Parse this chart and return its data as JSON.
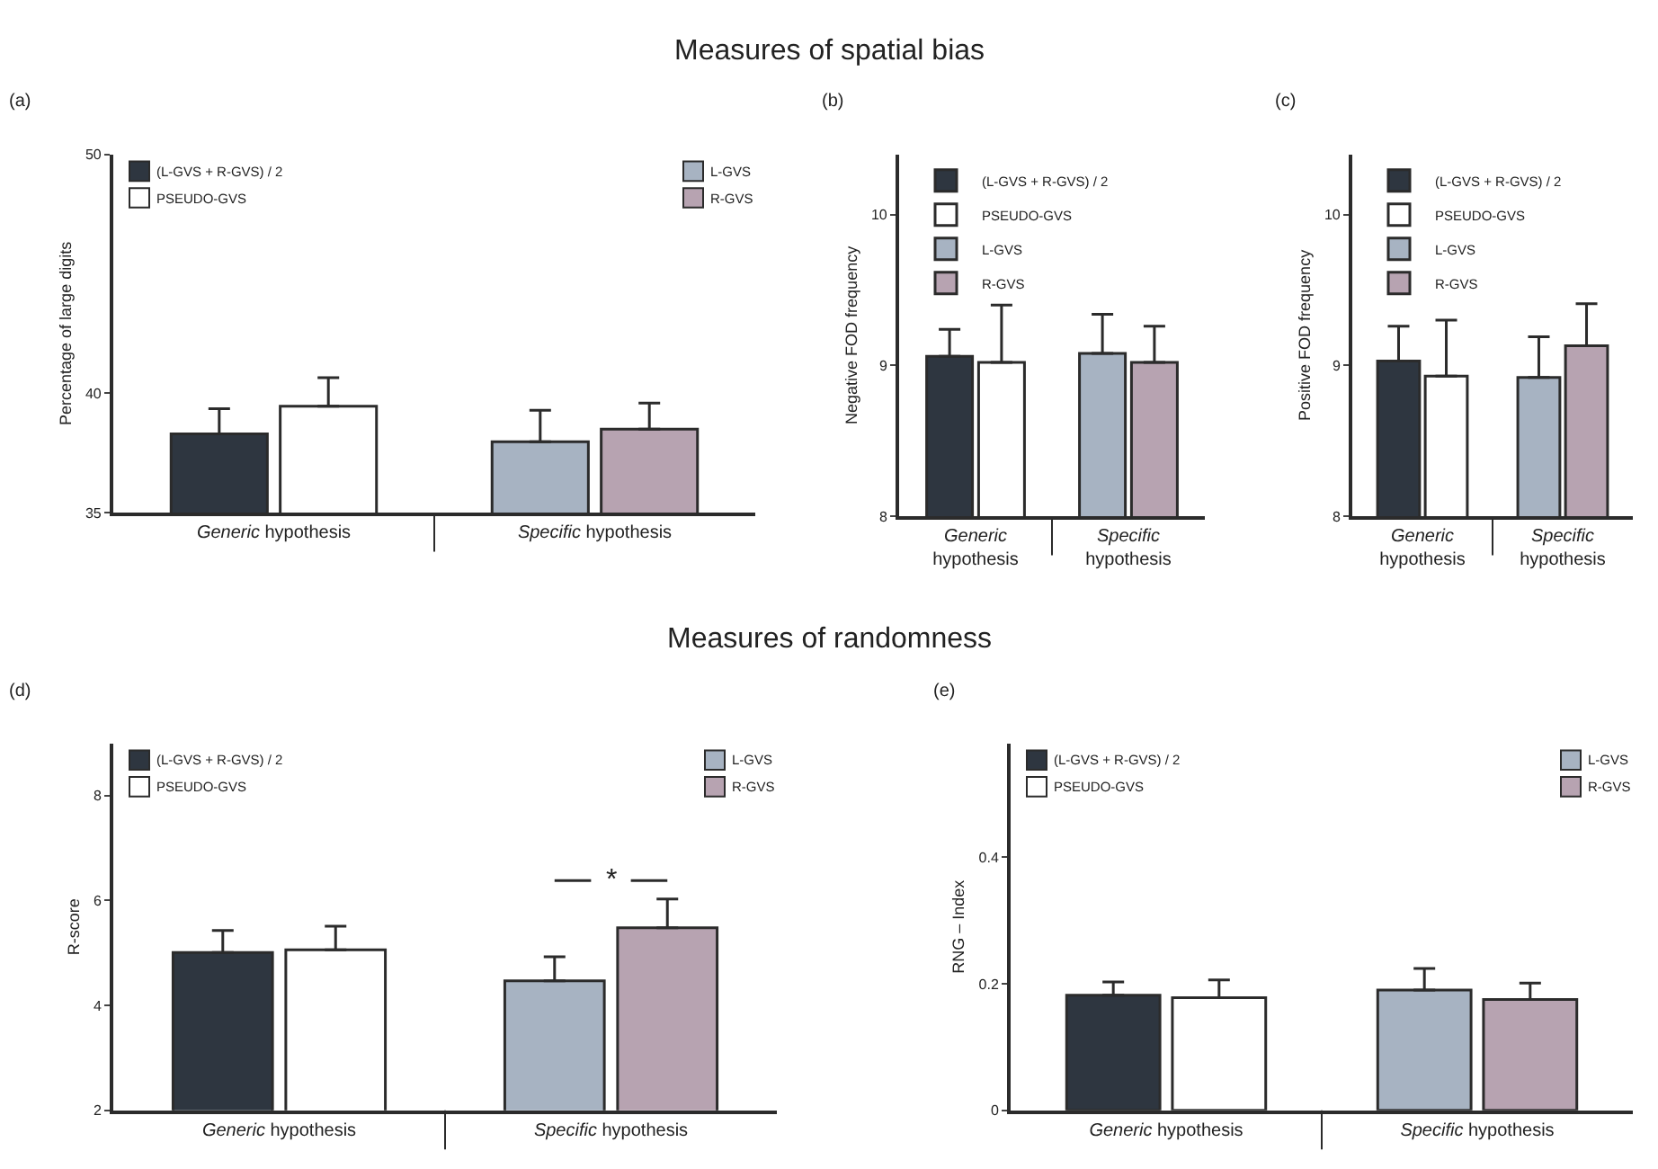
{
  "chart_data": [
    {
      "type": "bar",
      "title": "(a)",
      "ylabel": "Percentage of large digits",
      "annotations": [
        "Measures of spatial bias"
      ],
      "categories": [
        "Generic hypothesis",
        "Specific hypothesis"
      ],
      "ylim": [
        35,
        50
      ],
      "yticks": [
        35,
        40,
        50
      ],
      "legend": "top",
      "grid": false,
      "series": [
        {
          "name": "(L-GVS + R-GVS) / 2",
          "color": "#2e3640",
          "values": [
            38.3,
            null
          ],
          "errors": [
            [
              38.3,
              39.35
            ],
            null
          ]
        },
        {
          "name": "PSEUDO-GVS",
          "color": "#ffffff",
          "values": [
            39.46,
            null
          ],
          "errors": [
            [
              39.46,
              40.65
            ],
            null
          ]
        },
        {
          "name": "L-GVS",
          "color": "#a7b3c2",
          "values": [
            null,
            37.97
          ],
          "errors": [
            null,
            [
              37.97,
              39.29
            ]
          ]
        },
        {
          "name": "R-GVS",
          "color": "#b7a3b1",
          "values": [
            null,
            38.5
          ],
          "errors": [
            null,
            [
              38.5,
              39.59
            ]
          ]
        }
      ]
    },
    {
      "type": "bar",
      "title": "(b)",
      "ylabel": "Negative FOD frequency",
      "categories": [
        "Generic hypothesis",
        "Specific hypothesis"
      ],
      "ylim": [
        8,
        10.4
      ],
      "yticks": [
        8,
        9,
        10
      ],
      "legend": "top",
      "grid": false,
      "series": [
        {
          "name": "(L-GVS + R-GVS) / 2",
          "color": "#2e3640",
          "values": [
            9.06,
            null
          ],
          "errors": [
            [
              9.06,
              9.24
            ],
            null
          ]
        },
        {
          "name": "PSEUDO-GVS",
          "color": "#ffffff",
          "values": [
            9.02,
            null
          ],
          "errors": [
            [
              9.02,
              9.4
            ],
            null
          ]
        },
        {
          "name": "L-GVS",
          "color": "#a7b3c2",
          "values": [
            null,
            9.08
          ],
          "errors": [
            null,
            [
              9.08,
              9.34
            ]
          ]
        },
        {
          "name": "R-GVS",
          "color": "#b7a3b1",
          "values": [
            null,
            9.02
          ],
          "errors": [
            null,
            [
              9.02,
              9.26
            ]
          ]
        }
      ]
    },
    {
      "type": "bar",
      "title": "(c)",
      "ylabel": "Positive FOD frequency",
      "categories": [
        "Generic hypothesis",
        "Specific hypothesis"
      ],
      "ylim": [
        8,
        10.4
      ],
      "yticks": [
        8,
        9,
        10
      ],
      "legend": "top",
      "grid": false,
      "series": [
        {
          "name": "(L-GVS + R-GVS) / 2",
          "color": "#2e3640",
          "values": [
            9.03,
            null
          ],
          "errors": [
            [
              9.03,
              9.26
            ],
            null
          ]
        },
        {
          "name": "PSEUDO-GVS",
          "color": "#ffffff",
          "values": [
            8.93,
            null
          ],
          "errors": [
            [
              8.93,
              9.3
            ],
            null
          ]
        },
        {
          "name": "L-GVS",
          "color": "#a7b3c2",
          "values": [
            null,
            8.92
          ],
          "errors": [
            null,
            [
              8.92,
              9.19
            ]
          ]
        },
        {
          "name": "R-GVS",
          "color": "#b7a3b1",
          "values": [
            null,
            9.13
          ],
          "errors": [
            null,
            [
              9.13,
              9.41
            ]
          ]
        }
      ]
    },
    {
      "type": "bar",
      "title": "(d)",
      "ylabel": "R-score",
      "annotations": [
        "Measures of randomness",
        "*"
      ],
      "categories": [
        "Generic hypothesis",
        "Specific hypothesis"
      ],
      "ylim": [
        2,
        9
      ],
      "yticks": [
        2,
        4,
        6,
        8
      ],
      "legend": "top",
      "grid": false,
      "series": [
        {
          "name": "(L-GVS + R-GVS) / 2",
          "color": "#2e3640",
          "values": [
            5.01,
            null
          ],
          "errors": [
            [
              5.01,
              5.43
            ],
            null
          ]
        },
        {
          "name": "PSEUDO-GVS",
          "color": "#ffffff",
          "values": [
            5.06,
            null
          ],
          "errors": [
            [
              5.06,
              5.51
            ],
            null
          ]
        },
        {
          "name": "L-GVS",
          "color": "#a7b3c2",
          "values": [
            null,
            4.47
          ],
          "errors": [
            null,
            [
              4.47,
              4.93
            ]
          ]
        },
        {
          "name": "R-GVS",
          "color": "#b7a3b1",
          "values": [
            null,
            5.48
          ],
          "errors": [
            null,
            [
              5.48,
              6.03
            ]
          ]
        }
      ]
    },
    {
      "type": "bar",
      "title": "(e)",
      "ylabel": "RNG – Index",
      "categories": [
        "Generic hypothesis",
        "Specific hypothesis"
      ],
      "ylim": [
        0,
        0.58
      ],
      "yticks": [
        0,
        0.2,
        0.4
      ],
      "legend": "top",
      "grid": false,
      "series": [
        {
          "name": "(L-GVS + R-GVS) / 2",
          "color": "#2e3640",
          "values": [
            0.182,
            null
          ],
          "errors": [
            [
              0.182,
              0.203
            ],
            null
          ]
        },
        {
          "name": "PSEUDO-GVS",
          "color": "#ffffff",
          "values": [
            0.178,
            null
          ],
          "errors": [
            [
              0.178,
              0.206
            ],
            null
          ]
        },
        {
          "name": "L-GVS",
          "color": "#a7b3c2",
          "values": [
            null,
            0.19
          ],
          "errors": [
            null,
            [
              0.19,
              0.224
            ]
          ]
        },
        {
          "name": "R-GVS",
          "color": "#b7a3b1",
          "values": [
            null,
            0.175
          ],
          "errors": [
            null,
            [
              0.175,
              0.201
            ]
          ]
        }
      ]
    }
  ]
}
